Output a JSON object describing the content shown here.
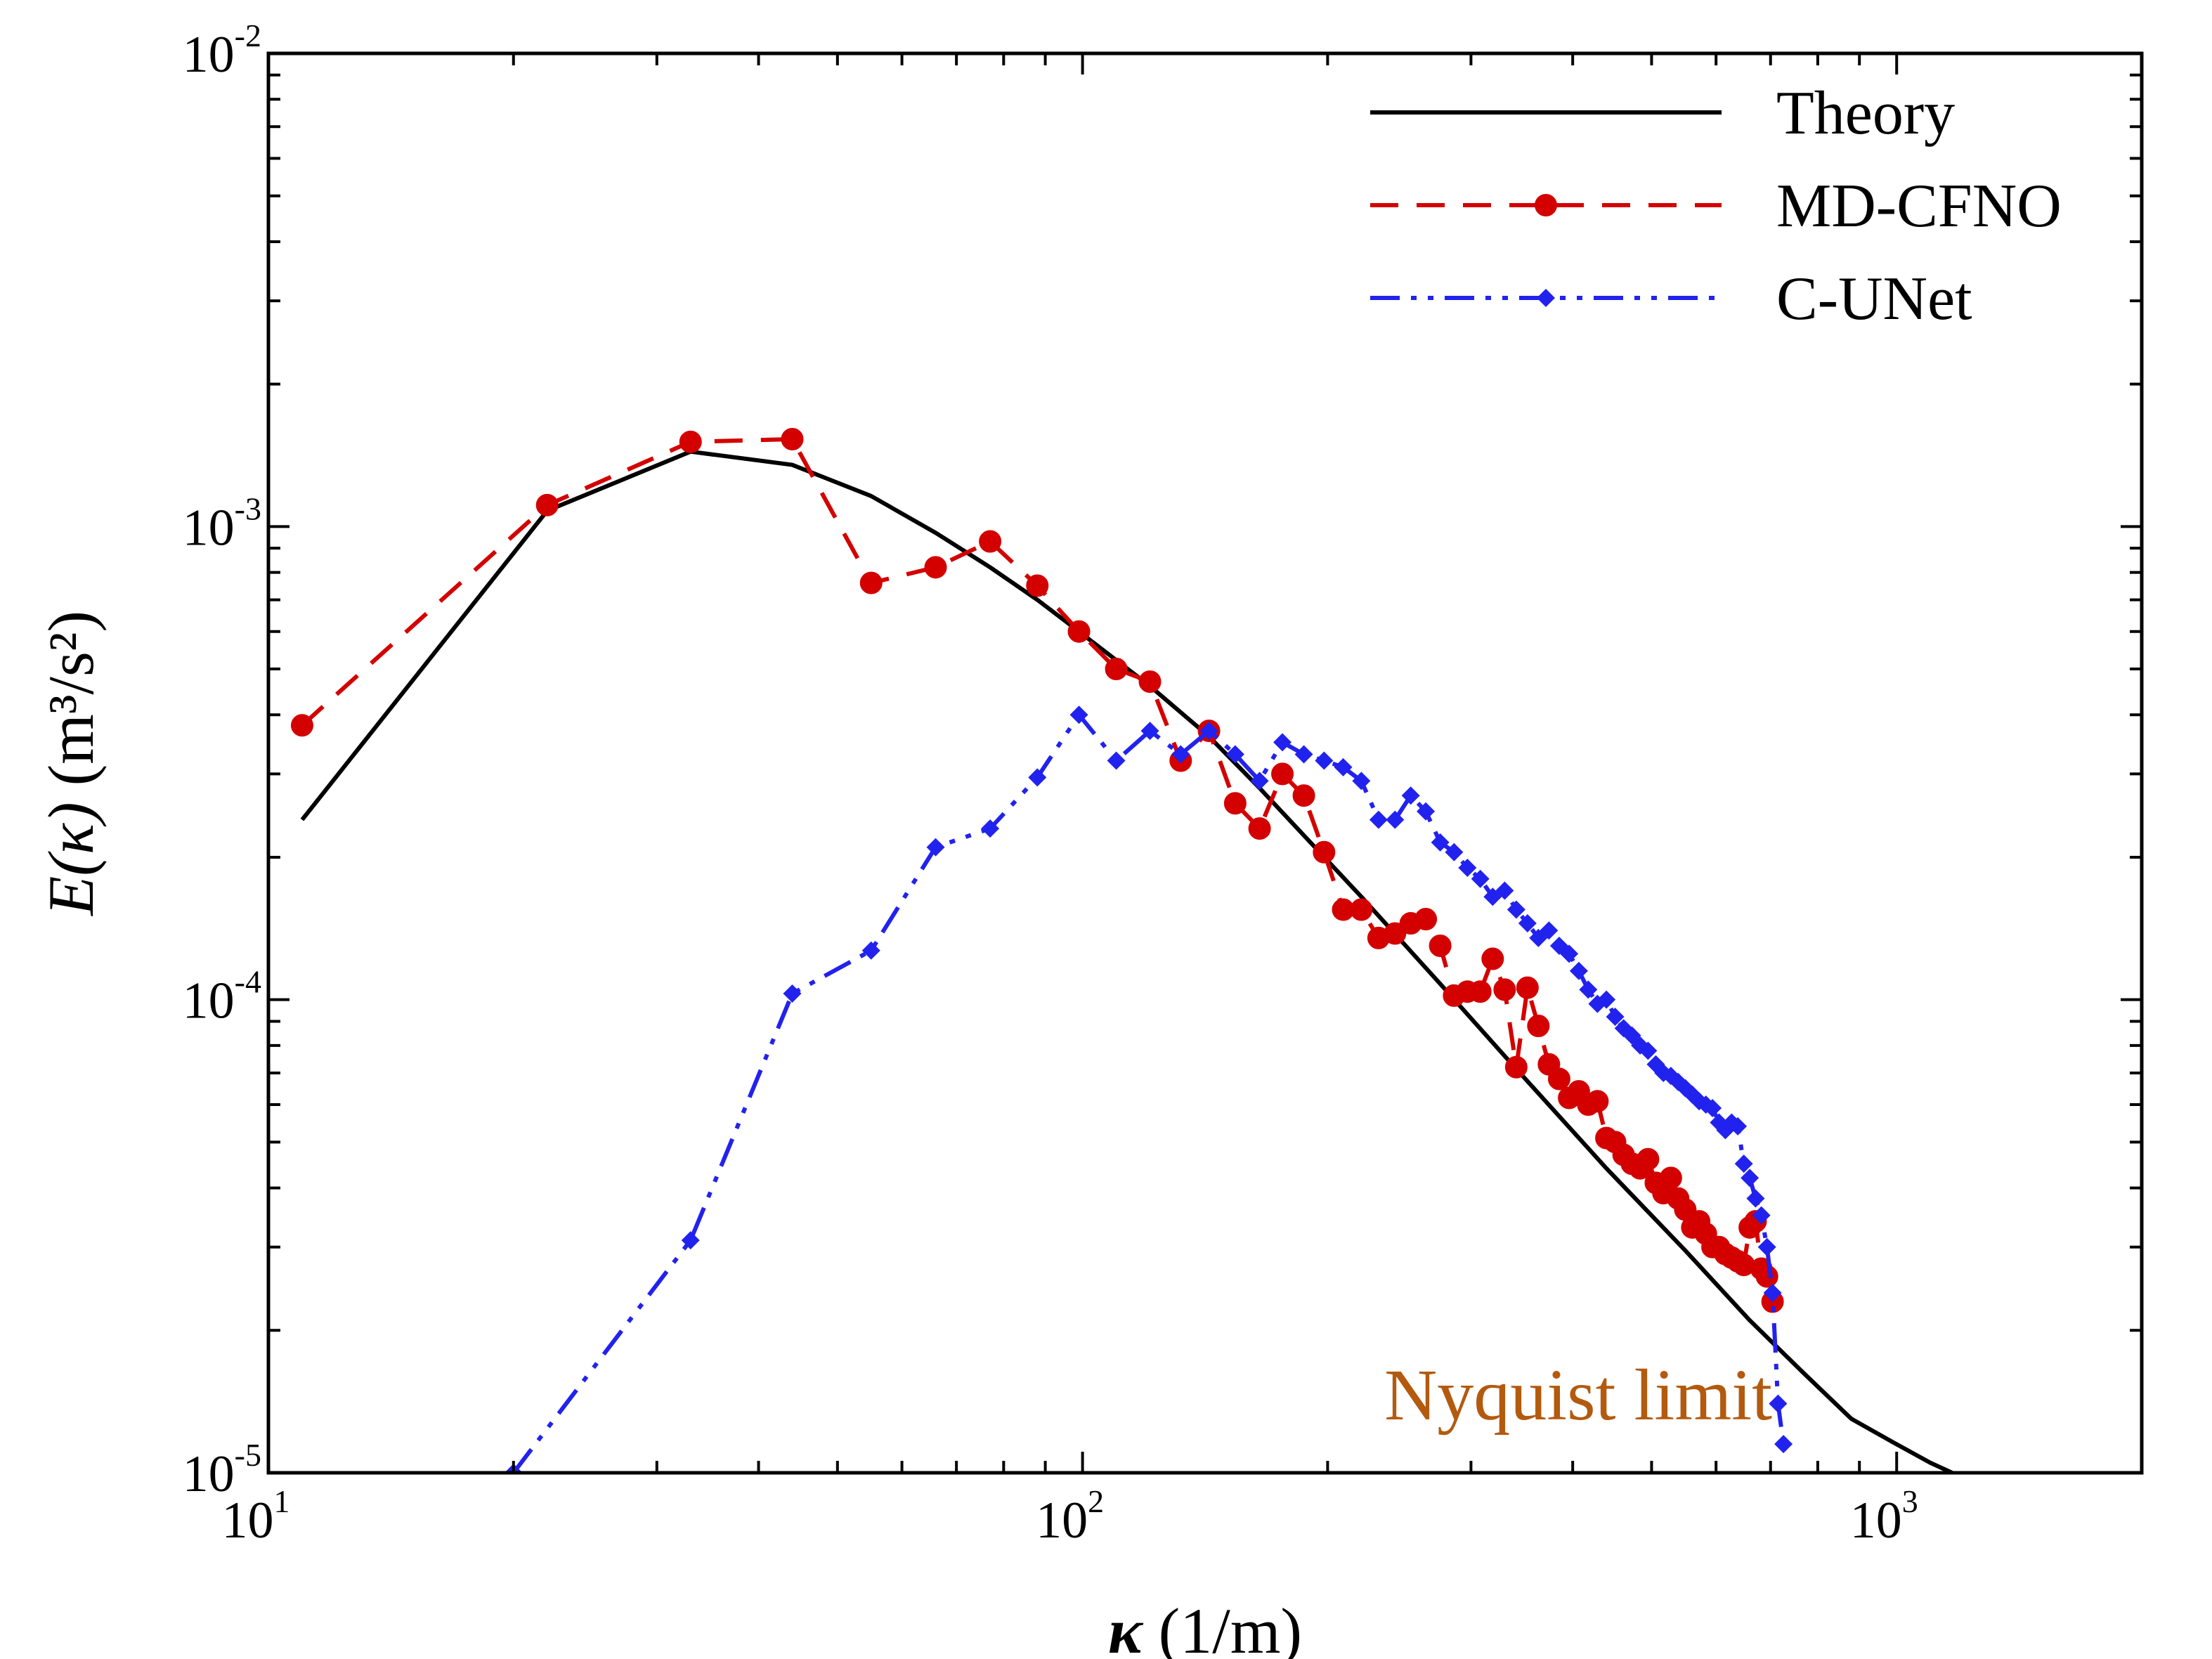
{
  "chart_data": {
    "type": "line",
    "xlabel": {
      "symbol": "κ",
      "unit": "(1/m)"
    },
    "ylabel": {
      "symbol": "E(κ)",
      "unit": "(m³/s²)",
      "text": "E(κ) (m³/s²)"
    },
    "x_scale": "log",
    "y_scale": "log",
    "xlim": [
      10,
      2000
    ],
    "ylim": [
      1e-05,
      0.01
    ],
    "x_ticks": [
      {
        "value": 10,
        "base": "10",
        "exp": "1"
      },
      {
        "value": 100,
        "base": "10",
        "exp": "2"
      },
      {
        "value": 1000,
        "base": "10",
        "exp": "3"
      }
    ],
    "y_ticks": [
      {
        "value": 1e-05,
        "base": "10",
        "exp": "-5"
      },
      {
        "value": 0.0001,
        "base": "10",
        "exp": "-4"
      },
      {
        "value": 0.001,
        "base": "10",
        "exp": "-3"
      },
      {
        "value": 0.01,
        "base": "10",
        "exp": "-2"
      }
    ],
    "grid": false,
    "legend": {
      "position": "top-right"
    },
    "annotation": {
      "text": "Nyquist limit",
      "color": "#b35a0e"
    },
    "series": [
      {
        "name": "Theory",
        "color": "#000000",
        "style": "solid",
        "marker": "none",
        "x": [
          11,
          22,
          33,
          44,
          55,
          66,
          77,
          88,
          99,
          121,
          143,
          165,
          220,
          275,
          330,
          440,
          550,
          660,
          770,
          880,
          990,
          1100,
          1170
        ],
        "y": [
          0.00024,
          0.00108,
          0.00144,
          0.00135,
          0.00116,
          0.00097,
          0.00082,
          0.0007,
          0.0006,
          0.00046,
          0.00036,
          0.00028,
          0.000165,
          0.000108,
          7.6e-05,
          4.4e-05,
          2.95e-05,
          2.1e-05,
          1.62e-05,
          1.3e-05,
          1.16e-05,
          1.05e-05,
          1e-05
        ]
      },
      {
        "name": "MD-CFNO",
        "color": "#d40000",
        "style": "dashed",
        "marker": "circle",
        "x": [
          11,
          22,
          33,
          44,
          55,
          66,
          77,
          88,
          99,
          110,
          121,
          132,
          143,
          154,
          165,
          176,
          187,
          198,
          209,
          220,
          231,
          242,
          253,
          264,
          275,
          286,
          297,
          308,
          319,
          330,
          341,
          352,
          363,
          374,
          385,
          396,
          407,
          418,
          429,
          440,
          451,
          462,
          473,
          484,
          495,
          506,
          517,
          528,
          539,
          550,
          561,
          572,
          583,
          594,
          605,
          616,
          627,
          638,
          649,
          660,
          671,
          682,
          693,
          704
        ],
        "y": [
          0.00038,
          0.00111,
          0.00151,
          0.00153,
          0.00076,
          0.00082,
          0.00093,
          0.00075,
          0.0006,
          0.0005,
          0.00047,
          0.00032,
          0.00037,
          0.00026,
          0.00023,
          0.0003,
          0.00027,
          0.000205,
          0.000155,
          0.000155,
          0.000135,
          0.000138,
          0.000145,
          0.000148,
          0.00013,
          0.000102,
          0.000104,
          0.000104,
          0.000122,
          0.000105,
          7.2e-05,
          0.000106,
          8.8e-05,
          7.3e-05,
          6.8e-05,
          6.2e-05,
          6.4e-05,
          6e-05,
          6.1e-05,
          5.1e-05,
          5e-05,
          4.7e-05,
          4.5e-05,
          4.4e-05,
          4.6e-05,
          4.1e-05,
          3.9e-05,
          4.2e-05,
          3.8e-05,
          3.6e-05,
          3.3e-05,
          3.4e-05,
          3.2e-05,
          3e-05,
          3e-05,
          2.9e-05,
          2.85e-05,
          2.8e-05,
          2.75e-05,
          3.3e-05,
          3.4e-05,
          2.7e-05,
          2.6e-05,
          2.3e-05
        ]
      },
      {
        "name": "C-UNet",
        "color": "#2222ee",
        "style": "dashdotdot",
        "marker": "diamond",
        "x": [
          20,
          33,
          44,
          55,
          66,
          77,
          88,
          99,
          110,
          121,
          132,
          143,
          154,
          165,
          176,
          187,
          198,
          209,
          220,
          231,
          242,
          253,
          264,
          275,
          286,
          297,
          308,
          319,
          330,
          341,
          352,
          363,
          374,
          385,
          396,
          407,
          418,
          429,
          440,
          451,
          462,
          473,
          484,
          495,
          506,
          517,
          528,
          539,
          550,
          561,
          572,
          583,
          594,
          605,
          616,
          627,
          638,
          649,
          660,
          671,
          682,
          693,
          704,
          715,
          726
        ],
        "y": [
          1e-05,
          3.1e-05,
          0.000103,
          0.000127,
          0.00021,
          0.00023,
          0.000295,
          0.0004,
          0.00032,
          0.00037,
          0.00033,
          0.00037,
          0.00033,
          0.00029,
          0.00035,
          0.00033,
          0.00032,
          0.00031,
          0.00029,
          0.00024,
          0.00024,
          0.00027,
          0.00025,
          0.000215,
          0.000205,
          0.00019,
          0.00018,
          0.000165,
          0.00017,
          0.000155,
          0.000145,
          0.000135,
          0.00014,
          0.00013,
          0.000125,
          0.000115,
          0.000105,
          9.8e-05,
          0.0001,
          9.2e-05,
          8.7e-05,
          8.4e-05,
          8e-05,
          7.8e-05,
          7.3e-05,
          7e-05,
          6.9e-05,
          6.7e-05,
          6.5e-05,
          6.3e-05,
          6.1e-05,
          6e-05,
          5.9e-05,
          5.5e-05,
          5.3e-05,
          5.5e-05,
          5.4e-05,
          4.5e-05,
          4.2e-05,
          3.8e-05,
          3.5e-05,
          3e-05,
          2.4e-05,
          1.4e-05,
          1.15e-05
        ]
      }
    ]
  }
}
